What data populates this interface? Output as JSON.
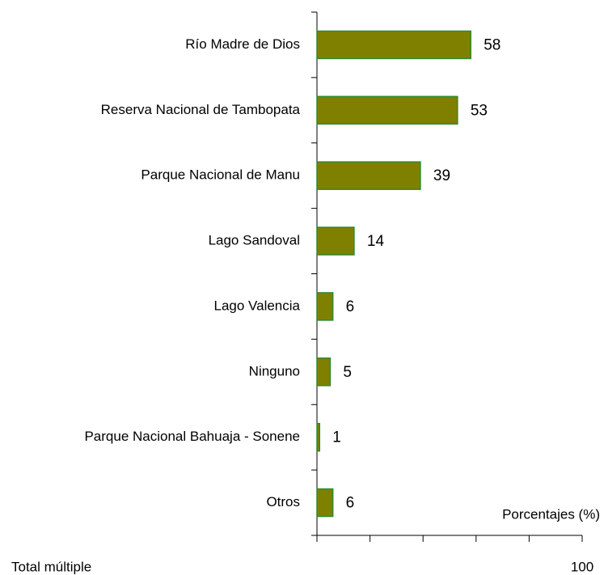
{
  "chart_data": {
    "type": "bar",
    "orientation": "horizontal",
    "categories": [
      "Río Madre de Dios",
      "Reserva Nacional de Tambopata",
      "Parque Nacional de Manu",
      "Lago Sandoval",
      "Lago Valencia",
      "Ninguno",
      "Parque Nacional Bahuaja - Sonene",
      "Otros"
    ],
    "values": [
      58,
      53,
      39,
      14,
      6,
      5,
      1,
      6
    ],
    "color": "#808000",
    "edge_color": "#2e8b2e",
    "xlabel": "Porcentajes (%)",
    "annotation": "Total múltiple",
    "xlim": [
      0,
      100
    ],
    "xticks": [
      0,
      20,
      40,
      60,
      80,
      100
    ],
    "grid": false
  }
}
